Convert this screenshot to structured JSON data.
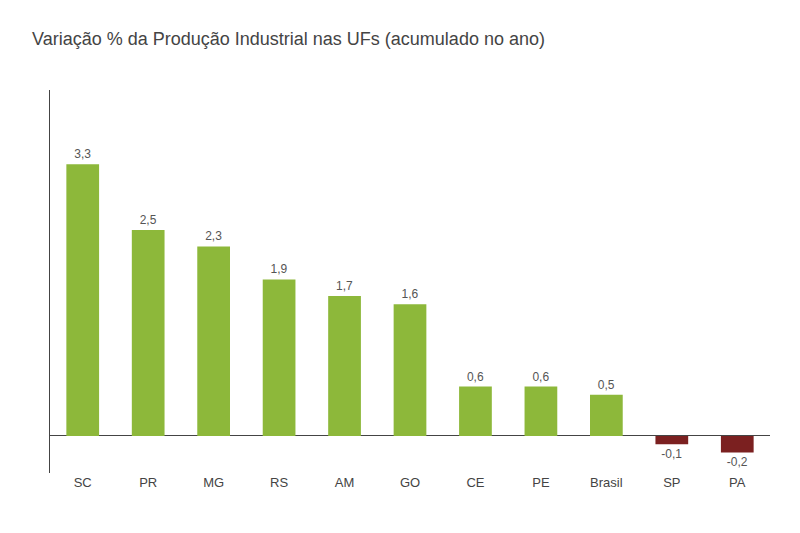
{
  "chart_data": {
    "type": "bar",
    "title": "Variação % da Produção Industrial nas UFs (acumulado no ano)",
    "categories": [
      "SC",
      "PR",
      "MG",
      "RS",
      "AM",
      "GO",
      "CE",
      "PE",
      "Brasil",
      "SP",
      "PA"
    ],
    "values": [
      3.3,
      2.5,
      2.3,
      1.9,
      1.7,
      1.6,
      0.6,
      0.6,
      0.5,
      -0.1,
      -0.2
    ],
    "value_labels": [
      "3,3",
      "2,5",
      "2,3",
      "1,9",
      "1,7",
      "1,6",
      "0,6",
      "0,6",
      "0,5",
      "-0,1",
      "-0,2"
    ],
    "colors": [
      "#8db83a",
      "#8db83a",
      "#8db83a",
      "#8db83a",
      "#8db83a",
      "#8db83a",
      "#8db83a",
      "#8db83a",
      "#8db83a",
      "#7b2020",
      "#7b2020"
    ],
    "ylim": [
      -0.45,
      4.2
    ],
    "grid": false,
    "data_labels": true,
    "tick_labels": "x"
  }
}
